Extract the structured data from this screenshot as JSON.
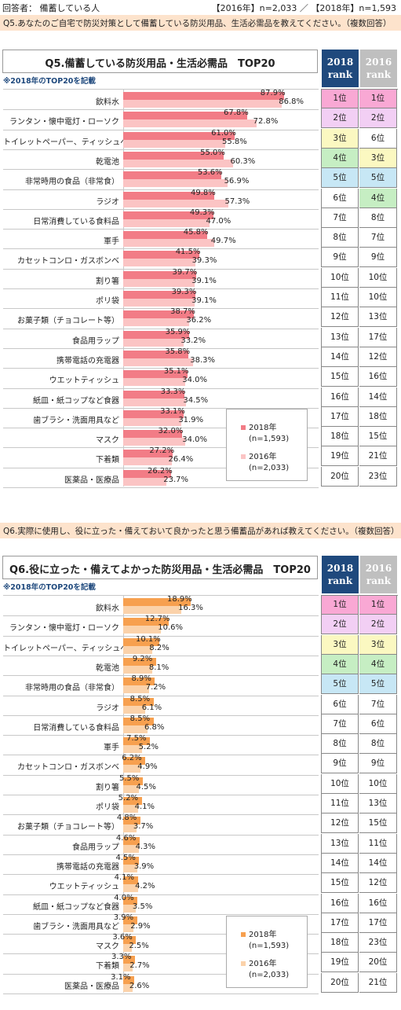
{
  "header": {
    "respondent": "回答者： 備蓄している人",
    "samples": "【2016年】n=2,033 ／ 【2018年】n=1,593"
  },
  "rank_headers": {
    "r2018_year": "2018",
    "r2016_year": "2016",
    "rank_word": "rank"
  },
  "colors": {
    "q5_2018": "#f27c86",
    "q5_2016": "#fbc4c4",
    "q6_2018": "#f7a04f",
    "q6_2016": "#fbd2aa",
    "header_2018": "#1f497d",
    "header_2016": "#bfbfbf"
  },
  "rank_colors": {
    "pink": "#f9a8d4",
    "lavender": "#f2cff4",
    "yellow": "#fbf8c1",
    "green": "#c6eec3",
    "blue": "#c7e7f5"
  },
  "q5": {
    "question": "Q5.あなたのご自宅で防災対策として備蓄している防災用品、生活必需品を教えてください。（複数回答）",
    "chart_data": {
      "type": "bar",
      "title": "Q5.備蓄している防災用品・生活必需品　TOP20",
      "note": "※2018年のTOP20を記載",
      "xlim": [
        0,
        100
      ],
      "categories": [
        "飲料水",
        "ランタン・懐中電灯・ローソク",
        "トイレットペーパー、ティッシュペーパー",
        "乾電池",
        "非常時用の食品（非常食）",
        "ラジオ",
        "日常消費している食料品",
        "軍手",
        "カセットコンロ・ガスボンベ",
        "割り箸",
        "ポリ袋",
        "お菓子類（チョコレート等）",
        "食品用ラップ",
        "携帯電話の充電器",
        "ウエットティッシュ",
        "紙皿・紙コップなど食器",
        "歯ブラシ・洗面用具など",
        "マスク",
        "下着類",
        "医薬品・医療品"
      ],
      "series": [
        {
          "name": "2018年",
          "n": "(n=1,593)",
          "values": [
            87.9,
            67.8,
            61.0,
            55.0,
            53.6,
            49.8,
            49.3,
            45.8,
            41.5,
            39.7,
            39.3,
            38.7,
            35.9,
            35.8,
            35.1,
            33.3,
            33.1,
            32.0,
            27.2,
            26.2
          ]
        },
        {
          "name": "2016年",
          "n": "(n=2,033)",
          "values": [
            86.8,
            72.8,
            55.8,
            60.3,
            56.9,
            57.3,
            47.0,
            49.7,
            39.3,
            39.1,
            39.1,
            36.2,
            33.2,
            38.3,
            34.0,
            34.5,
            31.9,
            34.0,
            26.4,
            23.7
          ]
        }
      ],
      "labels_2018": [
        "87.9%",
        "67.8%",
        "61.0%",
        "55.0%",
        "53.6%",
        "49.8%",
        "49.3%",
        "45.8%",
        "41.5%",
        "39.7%",
        "39.3%",
        "38.7%",
        "35.9%",
        "35.8%",
        "35.1%",
        "33.3%",
        "33.1%",
        "32.0%",
        "27.2%",
        "26.2%"
      ],
      "labels_2016": [
        "86.8%",
        "72.8%",
        "55.8%",
        "60.3%",
        "56.9%",
        "57.3%",
        "47.0%",
        "49.7%",
        "39.3%",
        "39.1%",
        "39.1%",
        "36.2%",
        "33.2%",
        "38.3%",
        "34.0%",
        "34.5%",
        "31.9%",
        "34.0%",
        "26.4%",
        "23.7%"
      ],
      "rank_2018": [
        "1位",
        "2位",
        "3位",
        "4位",
        "5位",
        "6位",
        "7位",
        "8位",
        "9位",
        "10位",
        "11位",
        "12位",
        "13位",
        "14位",
        "15位",
        "16位",
        "17位",
        "18位",
        "19位",
        "20位"
      ],
      "rank_2016": [
        "1位",
        "2位",
        "6位",
        "3位",
        "5位",
        "4位",
        "8位",
        "7位",
        "9位",
        "10位",
        "10位",
        "13位",
        "17位",
        "12位",
        "16位",
        "14位",
        "18位",
        "15位",
        "21位",
        "23位"
      ],
      "rank_2018_colors": [
        "pink",
        "lavender",
        "yellow",
        "green",
        "blue",
        "",
        "",
        "",
        "",
        "",
        "",
        "",
        "",
        "",
        "",
        "",
        "",
        "",
        "",
        ""
      ],
      "rank_2016_colors": [
        "pink",
        "lavender",
        "",
        "yellow",
        "blue",
        "green",
        "",
        "",
        "",
        "",
        "",
        "",
        "",
        "",
        "",
        "",
        "",
        "",
        "",
        ""
      ],
      "legend": "bottom-right"
    }
  },
  "q6": {
    "question": "Q6.実際に使用し、役に立った・備えておいて良かったと思う備蓄品があれば教えてください。（複数回答）",
    "chart_data": {
      "type": "bar",
      "title": "Q6.役に立った・備えてよかった防災用品・生活必需品　TOP20",
      "note": "※2018年のTOP20を記載",
      "xlim": [
        0,
        100
      ],
      "categories": [
        "飲料水",
        "ランタン・懐中電灯・ローソク",
        "トイレットペーパー、ティッシュペーパー",
        "乾電池",
        "非常時用の食品（非常食）",
        "ラジオ",
        "日常消費している食料品",
        "軍手",
        "カセットコンロ・ガスボンベ",
        "割り箸",
        "ポリ袋",
        "お菓子類（チョコレート等）",
        "食品用ラップ",
        "携帯電話の充電器",
        "ウエットティッシュ",
        "紙皿・紙コップなど食器",
        "歯ブラシ・洗面用具など",
        "マスク",
        "下着類",
        "医薬品・医療品"
      ],
      "series": [
        {
          "name": "2018年",
          "n": "(n=1,593)",
          "values": [
            18.9,
            12.7,
            10.1,
            9.2,
            8.9,
            8.5,
            8.5,
            7.5,
            6.2,
            5.5,
            5.2,
            4.8,
            4.6,
            4.5,
            4.1,
            4.0,
            3.9,
            3.6,
            3.3,
            3.1
          ]
        },
        {
          "name": "2016年",
          "n": "(n=2,033)",
          "values": [
            16.3,
            10.6,
            8.2,
            8.1,
            7.2,
            6.1,
            6.8,
            5.2,
            4.9,
            4.5,
            4.1,
            3.7,
            4.3,
            3.9,
            4.2,
            3.5,
            2.9,
            2.5,
            2.7,
            2.6
          ]
        }
      ],
      "labels_2018": [
        "18.9%",
        "12.7%",
        "10.1%",
        "9.2%",
        "8.9%",
        "8.5%",
        "8.5%",
        "7.5%",
        "6.2%",
        "5.5%",
        "5.2%",
        "4.8%",
        "4.6%",
        "4.5%",
        "4.1%",
        "4.0%",
        "3.9%",
        "3.6%",
        "3.3%",
        "3.1%"
      ],
      "labels_2016": [
        "16.3%",
        "10.6%",
        "8.2%",
        "8.1%",
        "7.2%",
        "6.1%",
        "6.8%",
        "5.2%",
        "4.9%",
        "4.5%",
        "4.1%",
        "3.7%",
        "4.3%",
        "3.9%",
        "4.2%",
        "3.5%",
        "2.9%",
        "2.5%",
        "2.7%",
        "2.6%"
      ],
      "rank_2018": [
        "1位",
        "2位",
        "3位",
        "4位",
        "5位",
        "6位",
        "7位",
        "8位",
        "9位",
        "10位",
        "11位",
        "12位",
        "13位",
        "14位",
        "15位",
        "16位",
        "17位",
        "18位",
        "19位",
        "20位"
      ],
      "rank_2016": [
        "1位",
        "2位",
        "3位",
        "4位",
        "5位",
        "7位",
        "6位",
        "8位",
        "9位",
        "10位",
        "13位",
        "15位",
        "11位",
        "14位",
        "12位",
        "16位",
        "17位",
        "23位",
        "20位",
        "21位"
      ],
      "rank_2018_colors": [
        "pink",
        "lavender",
        "yellow",
        "green",
        "blue",
        "",
        "",
        "",
        "",
        "",
        "",
        "",
        "",
        "",
        "",
        "",
        "",
        "",
        "",
        ""
      ],
      "rank_2016_colors": [
        "pink",
        "lavender",
        "yellow",
        "green",
        "blue",
        "",
        "",
        "",
        "",
        "",
        "",
        "",
        "",
        "",
        "",
        "",
        "",
        "",
        "",
        ""
      ],
      "legend": "bottom-right"
    }
  }
}
